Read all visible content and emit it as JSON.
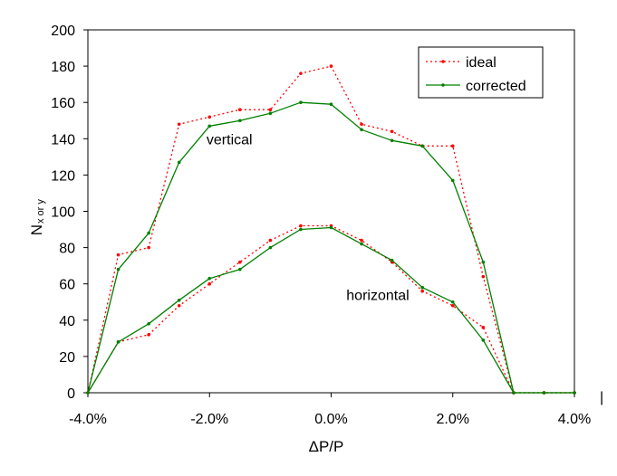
{
  "chart_data": {
    "type": "line",
    "title": "",
    "xlabel": "ΔP/P",
    "ylabel_main": "N",
    "ylabel_sub": "x or y",
    "xlim": [
      -0.04,
      0.04
    ],
    "ylim": [
      0,
      200
    ],
    "x_ticks": [
      -0.04,
      -0.02,
      0.0,
      0.02,
      0.04
    ],
    "x_tick_labels": [
      "-4.0%",
      "-2.0%",
      "0.0%",
      "2.0%",
      "4.0%"
    ],
    "y_ticks": [
      0,
      20,
      40,
      60,
      80,
      100,
      120,
      140,
      160,
      180,
      200
    ],
    "y_tick_labels": [
      "0",
      "20",
      "40",
      "60",
      "80",
      "100",
      "120",
      "140",
      "160",
      "180",
      "200"
    ],
    "grid": false,
    "legend_position": "top-right",
    "x": [
      -0.04,
      -0.035,
      -0.03,
      -0.025,
      -0.02,
      -0.015,
      -0.01,
      -0.005,
      0.0,
      0.005,
      0.01,
      0.015,
      0.02,
      0.025,
      0.03,
      0.035,
      0.04
    ],
    "series": [
      {
        "name": "ideal",
        "color": "#ff0000",
        "style": "dotted",
        "group": "vertical",
        "values": [
          0,
          76,
          80,
          148,
          152,
          156,
          156,
          176,
          180,
          148,
          144,
          136,
          136,
          64,
          0,
          0,
          0
        ]
      },
      {
        "name": "corrected",
        "color": "#008000",
        "style": "solid",
        "group": "vertical",
        "values": [
          0,
          68,
          88,
          127,
          147,
          150,
          154,
          160,
          159,
          145,
          139,
          136,
          117,
          72,
          0,
          0,
          0
        ]
      },
      {
        "name": "ideal",
        "color": "#ff0000",
        "style": "dotted",
        "group": "horizontal",
        "values": [
          0,
          28,
          32,
          48,
          60,
          72,
          84,
          92,
          92,
          84,
          72,
          56,
          48,
          36,
          0,
          0,
          0
        ]
      },
      {
        "name": "corrected",
        "color": "#008000",
        "style": "solid",
        "group": "horizontal",
        "values": [
          0,
          28,
          38,
          51,
          63,
          68,
          80,
          90,
          91,
          82,
          73,
          58,
          50,
          29,
          0,
          0,
          0
        ]
      }
    ],
    "legend": [
      {
        "label": "ideal",
        "color": "#ff0000",
        "style": "dotted"
      },
      {
        "label": "corrected",
        "color": "#008000",
        "style": "solid"
      }
    ],
    "annotations": [
      {
        "text": "vertical",
        "x": -0.0205,
        "y": 137
      },
      {
        "text": "horizontal",
        "x": 0.0025,
        "y": 51
      }
    ],
    "stray_mark": "|"
  }
}
